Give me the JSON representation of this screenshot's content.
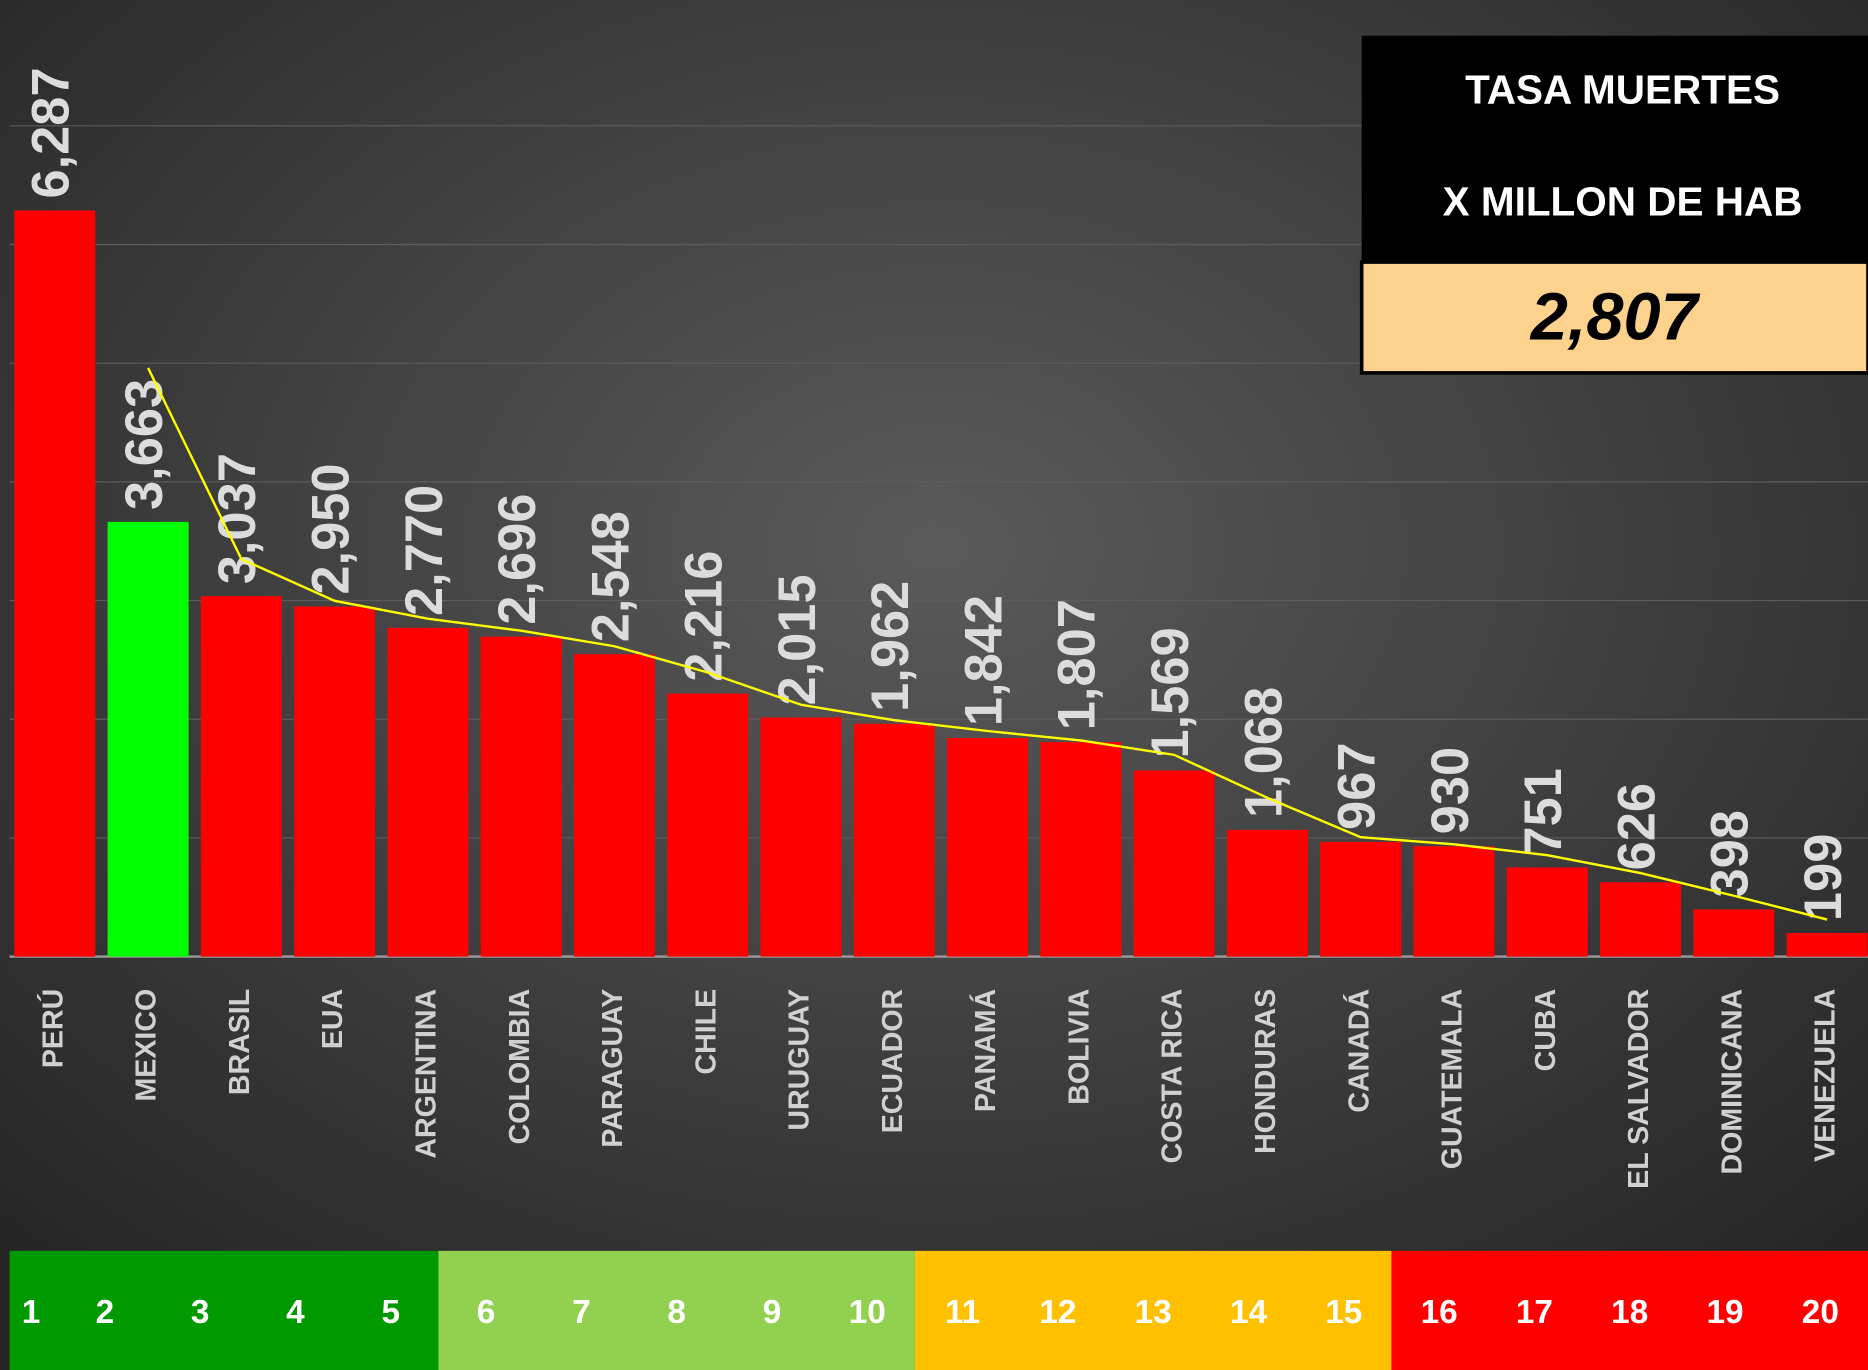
{
  "chart_data": {
    "type": "bar",
    "categories": [
      "PERÚ",
      "MEXICO",
      "BRASIL",
      "EUA",
      "ARGENTINA",
      "COLOMBIA",
      "PARAGUAY",
      "CHILE",
      "URUGUAY",
      "ECUADOR",
      "PANAMÁ",
      "BOLIVIA",
      "COSTA RICA",
      "HONDURAS",
      "CANADÁ",
      "GUATEMALA",
      "CUBA",
      "EL SALVADOR",
      "DOMINICANA",
      "VENEZUELA"
    ],
    "values": [
      6287,
      3663,
      3037,
      2950,
      2770,
      2696,
      2548,
      2216,
      2015,
      1962,
      1842,
      1807,
      1569,
      1068,
      967,
      930,
      751,
      626,
      398,
      199
    ],
    "value_labels": [
      "6,287",
      "3,663",
      "3,037",
      "2,950",
      "2,770",
      "2,696",
      "2,548",
      "2,216",
      "2,015",
      "1,962",
      "1,842",
      "1,807",
      "1,569",
      "1,068",
      "967",
      "930",
      "751",
      "626",
      "398",
      "199"
    ],
    "colors": [
      "#ff0000",
      "#00ff00",
      "#ff0000",
      "#ff0000",
      "#ff0000",
      "#ff0000",
      "#ff0000",
      "#ff0000",
      "#ff0000",
      "#ff0000",
      "#ff0000",
      "#ff0000",
      "#ff0000",
      "#ff0000",
      "#ff0000",
      "#ff0000",
      "#ff0000",
      "#ff0000",
      "#ff0000",
      "#ff0000"
    ],
    "line": {
      "color": "#ffff00",
      "values": [
        null,
        4960,
        3350,
        2998,
        2847,
        2746,
        2615,
        2394,
        2122,
        1992,
        1901,
        1821,
        1700,
        1338,
        1006,
        946,
        855,
        704,
        513,
        312
      ]
    },
    "ylim": [
      0,
      8000
    ],
    "yticks": [
      0,
      1000,
      2000,
      3000,
      4000,
      5000,
      6000,
      7000
    ],
    "grid": true,
    "rank_strip": {
      "ranks": [
        1,
        2,
        3,
        4,
        5,
        6,
        7,
        8,
        9,
        10,
        11,
        12,
        13,
        14,
        15,
        16,
        17,
        18,
        19,
        20
      ],
      "colors": [
        "#009900",
        "#92d050",
        "#ffc000",
        "#ff0000"
      ]
    },
    "summary": {
      "lines": [
        "TASA MUERTES",
        "X MILLON DE HAB"
      ],
      "value": 2807,
      "value_label": "2,807"
    }
  }
}
